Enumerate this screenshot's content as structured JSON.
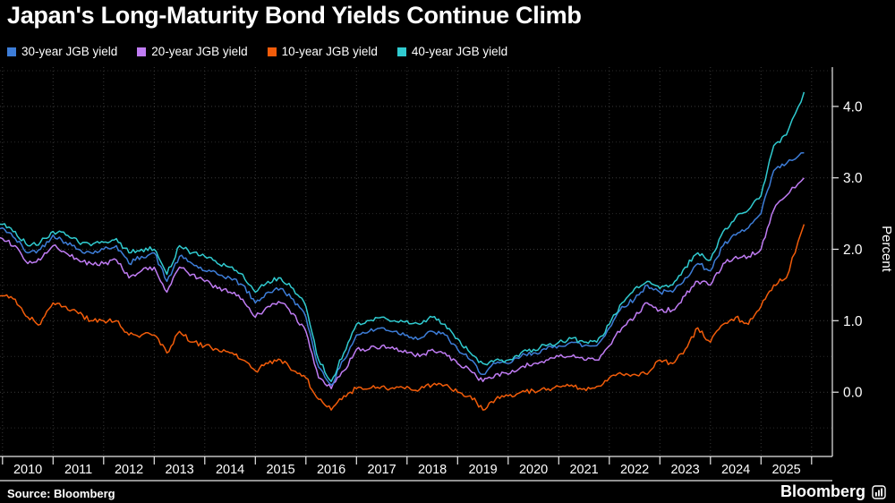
{
  "title": "Japan's Long-Maturity Bond Yields Continue Climb",
  "legend": [
    {
      "label": "30-year JGB yield",
      "color": "#3d7dd8"
    },
    {
      "label": "20-year JGB yield",
      "color": "#c07cf4"
    },
    {
      "label": "10-year JGB yield",
      "color": "#f25c0a"
    },
    {
      "label": "40-year JGB yield",
      "color": "#30cbd0"
    }
  ],
  "source": "Source: Bloomberg",
  "brand": "Bloomberg",
  "colors": {
    "background": "#000000",
    "axis": "#e8e8e8",
    "grid_major": "#3a3a3a",
    "grid_minor": "#2a2a2a",
    "text": "#ffffff"
  },
  "chart_data": {
    "type": "line",
    "title": "Japan's Long-Maturity Bond Yields Continue Climb",
    "xlabel": "",
    "ylabel": "Percent",
    "unit": "%",
    "grid": "dotted",
    "legend_position": "top-left",
    "xlim": [
      2009.95,
      2026.41
    ],
    "ylim": [
      -0.9,
      4.55
    ],
    "y_ticks": [
      {
        "label": "0.0",
        "value": 0
      },
      {
        "label": "1.0",
        "value": 1
      },
      {
        "label": "2.0",
        "value": 2
      },
      {
        "label": "3.0",
        "value": 3
      },
      {
        "label": "4.0",
        "value": 4
      }
    ],
    "x_ticks": [
      {
        "label": "2010",
        "year": 2010
      },
      {
        "label": "2011",
        "year": 2011
      },
      {
        "label": "2012",
        "year": 2012
      },
      {
        "label": "2013",
        "year": 2013
      },
      {
        "label": "2014",
        "year": 2014
      },
      {
        "label": "2015",
        "year": 2015
      },
      {
        "label": "2016",
        "year": 2016
      },
      {
        "label": "2017",
        "year": 2017
      },
      {
        "label": "2018",
        "year": 2018
      },
      {
        "label": "2019",
        "year": 2019
      },
      {
        "label": "2020",
        "year": 2020
      },
      {
        "label": "2021",
        "year": 2021
      },
      {
        "label": "2022",
        "year": 2022
      },
      {
        "label": "2023",
        "year": 2023
      },
      {
        "label": "2024",
        "year": 2024
      },
      {
        "label": "2025",
        "year": 2025
      }
    ],
    "x": [
      2009.6,
      2010,
      2010.25,
      2010.5,
      2010.75,
      2011,
      2011.25,
      2011.5,
      2011.75,
      2012,
      2012.25,
      2012.5,
      2012.75,
      2013,
      2013.25,
      2013.5,
      2013.75,
      2014,
      2014.25,
      2014.5,
      2014.75,
      2015,
      2015.25,
      2015.5,
      2015.75,
      2016,
      2016.25,
      2016.5,
      2016.75,
      2017,
      2017.25,
      2017.5,
      2017.75,
      2018,
      2018.25,
      2018.5,
      2018.75,
      2019,
      2019.25,
      2019.5,
      2019.75,
      2020,
      2020.25,
      2020.5,
      2020.75,
      2021,
      2021.25,
      2021.5,
      2021.75,
      2022,
      2022.25,
      2022.5,
      2022.75,
      2023,
      2023.25,
      2023.5,
      2023.75,
      2024,
      2024.25,
      2024.5,
      2024.75,
      2025,
      2025.25,
      2025.5,
      2025.85
    ],
    "series": [
      {
        "name": "30-year JGB yield",
        "color": "#3d7dd8",
        "values": [
          2.35,
          2.3,
          2.15,
          1.95,
          2.0,
          2.2,
          2.1,
          2.0,
          1.95,
          2.0,
          2.05,
          1.8,
          1.9,
          1.95,
          1.55,
          1.9,
          1.8,
          1.7,
          1.65,
          1.6,
          1.5,
          1.25,
          1.4,
          1.45,
          1.3,
          1.05,
          0.35,
          0.1,
          0.45,
          0.8,
          0.85,
          0.9,
          0.85,
          0.8,
          0.75,
          0.85,
          0.8,
          0.6,
          0.45,
          0.25,
          0.4,
          0.4,
          0.5,
          0.55,
          0.6,
          0.65,
          0.7,
          0.65,
          0.65,
          0.9,
          1.2,
          1.3,
          1.5,
          1.4,
          1.4,
          1.6,
          1.8,
          1.7,
          2.05,
          2.2,
          2.3,
          2.5,
          3.1,
          3.2,
          3.35
        ]
      },
      {
        "name": "20-year JGB yield",
        "color": "#c07cf4",
        "values": [
          2.25,
          2.15,
          2.05,
          1.8,
          1.85,
          2.05,
          1.95,
          1.85,
          1.8,
          1.8,
          1.85,
          1.6,
          1.7,
          1.75,
          1.4,
          1.75,
          1.65,
          1.55,
          1.45,
          1.4,
          1.3,
          1.05,
          1.2,
          1.25,
          1.1,
          0.85,
          0.2,
          0.05,
          0.3,
          0.6,
          0.6,
          0.65,
          0.6,
          0.55,
          0.5,
          0.6,
          0.55,
          0.4,
          0.3,
          0.15,
          0.25,
          0.25,
          0.35,
          0.4,
          0.45,
          0.5,
          0.5,
          0.45,
          0.45,
          0.65,
          0.9,
          1.05,
          1.25,
          1.15,
          1.15,
          1.35,
          1.55,
          1.5,
          1.8,
          1.9,
          1.9,
          2.0,
          2.55,
          2.75,
          3.0
        ]
      },
      {
        "name": "10-year JGB yield",
        "color": "#f25c0a",
        "values": [
          1.35,
          1.35,
          1.3,
          1.05,
          0.95,
          1.25,
          1.2,
          1.1,
          1.0,
          1.0,
          1.0,
          0.8,
          0.8,
          0.8,
          0.55,
          0.85,
          0.7,
          0.65,
          0.6,
          0.55,
          0.45,
          0.3,
          0.4,
          0.45,
          0.3,
          0.2,
          -0.1,
          -0.25,
          -0.05,
          0.05,
          0.05,
          0.08,
          0.05,
          0.08,
          0.04,
          0.1,
          0.1,
          0.0,
          -0.05,
          -0.25,
          -0.1,
          -0.05,
          0.0,
          0.02,
          0.03,
          0.08,
          0.1,
          0.05,
          0.08,
          0.2,
          0.25,
          0.25,
          0.25,
          0.45,
          0.4,
          0.6,
          0.9,
          0.7,
          0.95,
          1.05,
          0.95,
          1.2,
          1.5,
          1.6,
          2.35
        ]
      },
      {
        "name": "40-year JGB yield",
        "color": "#30cbd0",
        "values": [
          2.4,
          2.35,
          2.25,
          2.05,
          2.1,
          2.25,
          2.2,
          2.1,
          2.05,
          2.1,
          2.15,
          1.95,
          2.0,
          2.0,
          1.65,
          2.05,
          1.95,
          1.9,
          1.8,
          1.75,
          1.65,
          1.4,
          1.55,
          1.6,
          1.45,
          1.2,
          0.45,
          0.15,
          0.55,
          0.95,
          1.0,
          1.05,
          1.0,
          1.0,
          0.95,
          1.05,
          0.95,
          0.75,
          0.55,
          0.4,
          0.45,
          0.45,
          0.55,
          0.6,
          0.65,
          0.7,
          0.75,
          0.7,
          0.7,
          0.95,
          1.25,
          1.45,
          1.55,
          1.45,
          1.5,
          1.75,
          1.95,
          1.85,
          2.25,
          2.45,
          2.55,
          2.75,
          3.45,
          3.6,
          4.2
        ]
      }
    ]
  }
}
